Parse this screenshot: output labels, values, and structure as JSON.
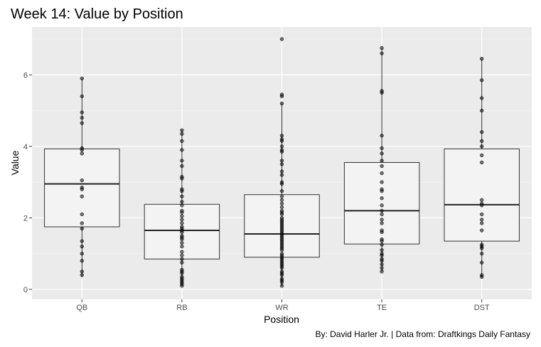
{
  "chart_data": {
    "type": "box",
    "title": "Week 14: Value by Position",
    "xlabel": "Position",
    "ylabel": "Value",
    "caption": "By: David Harler Jr. | Data from: Draftkings Daily Fantasy",
    "ylim": [
      -0.25,
      7.3
    ],
    "yticks": [
      0,
      2,
      4,
      6
    ],
    "grid": true,
    "categories": [
      "QB",
      "RB",
      "WR",
      "TE",
      "DST"
    ],
    "boxes": [
      {
        "category": "QB",
        "q1": 1.75,
        "median": 2.95,
        "q3": 3.93,
        "whisker_low": 0.35,
        "whisker_high": 5.9,
        "points": [
          5.9,
          5.4,
          4.95,
          4.8,
          4.65,
          3.95,
          3.9,
          3.8,
          3.05,
          2.85,
          2.8,
          2.6,
          2.1,
          1.85,
          1.7,
          1.35,
          1.2,
          1.0,
          0.8,
          0.5,
          0.4
        ]
      },
      {
        "category": "RB",
        "q1": 0.85,
        "median": 1.65,
        "q3": 2.38,
        "whisker_low": 0.1,
        "whisker_high": 4.45,
        "points": [
          4.45,
          4.35,
          4.15,
          3.9,
          3.6,
          3.45,
          3.15,
          3.1,
          2.8,
          2.75,
          2.6,
          2.45,
          2.35,
          2.2,
          2.15,
          2.05,
          1.95,
          1.85,
          1.75,
          1.7,
          1.65,
          1.6,
          1.5,
          1.45,
          1.4,
          1.3,
          1.2,
          1.05,
          0.95,
          0.85,
          0.75,
          0.55,
          0.5,
          0.45,
          0.35,
          0.3,
          0.25,
          0.2,
          0.15,
          0.1
        ]
      },
      {
        "category": "WR",
        "q1": 0.9,
        "median": 1.55,
        "q3": 2.65,
        "whisker_low": 0.1,
        "whisker_high": 5.2,
        "points": [
          7.0,
          5.45,
          5.4,
          5.2,
          4.3,
          4.2,
          4.15,
          4.0,
          3.9,
          3.85,
          3.6,
          3.5,
          3.3,
          3.2,
          3.0,
          2.95,
          2.75,
          2.6,
          2.5,
          2.4,
          2.3,
          2.2,
          2.15,
          2.1,
          2.0,
          1.95,
          1.9,
          1.85,
          1.8,
          1.75,
          1.7,
          1.65,
          1.6,
          1.55,
          1.5,
          1.45,
          1.4,
          1.35,
          1.3,
          1.25,
          1.2,
          1.15,
          1.1,
          1.0,
          0.95,
          0.9,
          0.85,
          0.8,
          0.75,
          0.7,
          0.65,
          0.6,
          0.5,
          0.45,
          0.4,
          0.3,
          0.25,
          0.2,
          0.1
        ]
      },
      {
        "category": "TE",
        "q1": 1.27,
        "median": 2.2,
        "q3": 3.55,
        "whisker_low": 0.5,
        "whisker_high": 6.75,
        "points": [
          6.75,
          6.6,
          5.55,
          5.5,
          4.3,
          3.95,
          3.8,
          3.6,
          3.45,
          3.25,
          3.0,
          2.8,
          2.75,
          2.55,
          2.35,
          2.2,
          2.1,
          1.95,
          1.85,
          1.65,
          1.6,
          1.4,
          1.35,
          1.25,
          1.1,
          1.0,
          0.95,
          0.85,
          0.8,
          0.7,
          0.6,
          0.5
        ]
      },
      {
        "category": "DST",
        "q1": 1.35,
        "median": 2.37,
        "q3": 3.93,
        "whisker_low": 0.35,
        "whisker_high": 6.45,
        "points": [
          6.45,
          5.85,
          5.35,
          5.0,
          4.4,
          4.15,
          4.0,
          3.75,
          3.55,
          2.5,
          2.4,
          2.35,
          2.1,
          1.95,
          1.85,
          1.65,
          1.25,
          1.2,
          1.15,
          1.0,
          0.75,
          0.4,
          0.35
        ]
      }
    ]
  }
}
